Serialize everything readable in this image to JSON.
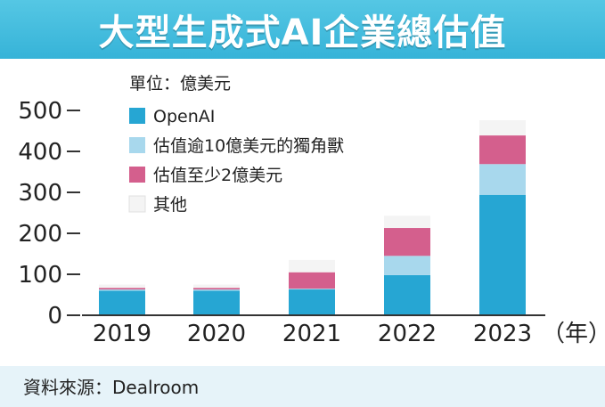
{
  "title": "大型生成式AI企業總估值",
  "source": "資料來源：Dealroom",
  "chart_data": {
    "type": "bar",
    "stacked": true,
    "unit_label": "單位：億美元",
    "x_unit": "（年）",
    "categories": [
      "2019",
      "2020",
      "2021",
      "2022",
      "2023"
    ],
    "ylim": [
      0,
      500
    ],
    "yticks": [
      0,
      100,
      200,
      300,
      400,
      500
    ],
    "grid": false,
    "legend_position": "top-left",
    "series": [
      {
        "name": "OpenAI",
        "color": "#26a6d3",
        "values": [
          60,
          60,
          63,
          98,
          294
        ]
      },
      {
        "name": "估值逾10億美元的獨角獸",
        "color": "#a8d8ed",
        "values": [
          3,
          3,
          2,
          47,
          75
        ]
      },
      {
        "name": "估值至少2億美元",
        "color": "#d45f8d",
        "values": [
          4,
          4,
          40,
          68,
          70
        ]
      },
      {
        "name": "其他",
        "color": "#f4f4f4",
        "values": [
          8,
          8,
          30,
          30,
          37
        ]
      }
    ]
  }
}
